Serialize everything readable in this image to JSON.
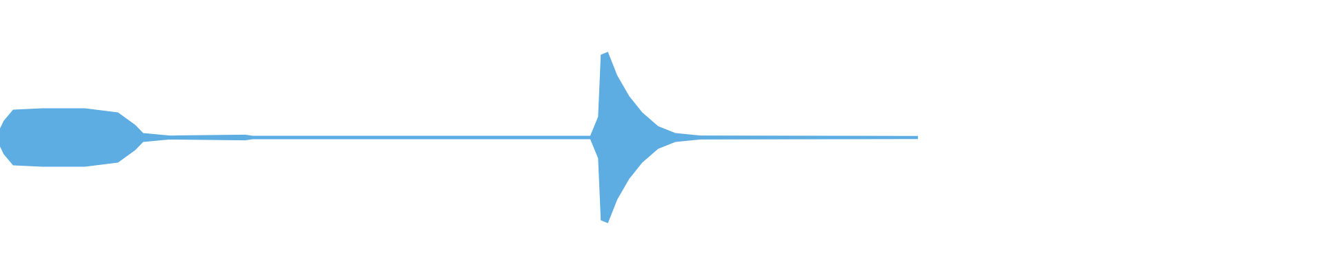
{
  "chart_data": {
    "type": "waveform",
    "x": [
      0.0,
      0.003,
      0.01,
      0.032,
      0.064,
      0.089,
      0.102,
      0.108,
      0.128,
      0.185,
      0.191,
      0.446,
      0.452,
      0.454,
      0.459,
      0.466,
      0.475,
      0.485,
      0.497,
      0.51,
      0.529,
      0.693
    ],
    "values": [
      0.06,
      0.12,
      0.2,
      0.21,
      0.21,
      0.18,
      0.09,
      0.03,
      0.012,
      0.018,
      0.01,
      0.01,
      0.15,
      0.6,
      0.62,
      0.45,
      0.3,
      0.18,
      0.08,
      0.03,
      0.012,
      0.009
    ],
    "xlim": [
      0,
      1
    ],
    "ylim": [
      -1,
      1
    ],
    "color": "#5dade2"
  }
}
